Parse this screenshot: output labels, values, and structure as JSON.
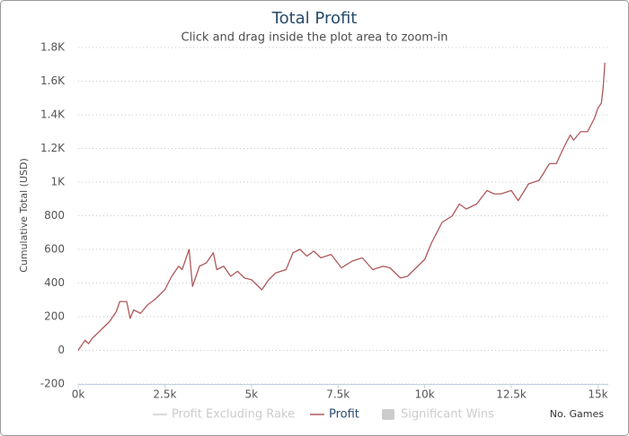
{
  "chart_data": {
    "type": "line",
    "title": "Total Profit",
    "subtitle": "Click and drag inside the plot area to zoom-in",
    "x_label": "No. Games",
    "y_label": "Cumulative Total (USD)",
    "xlim": [
      0,
      15300
    ],
    "xticks": [
      {
        "value": 0,
        "label": "0k"
      },
      {
        "value": 2500,
        "label": "2.5k"
      },
      {
        "value": 5000,
        "label": "5k"
      },
      {
        "value": 7500,
        "label": "7.5k"
      },
      {
        "value": 10000,
        "label": "10k"
      },
      {
        "value": 12500,
        "label": "12.5k"
      },
      {
        "value": 15000,
        "label": "15k"
      }
    ],
    "ylim": [
      -200,
      1800
    ],
    "yticks": [
      -200,
      0,
      200,
      400,
      600,
      800,
      {
        "value": 1000,
        "label": "1K"
      },
      {
        "value": 1200,
        "label": "1.2K"
      },
      {
        "value": 1400,
        "label": "1.4K"
      },
      {
        "value": 1600,
        "label": "1.6K"
      },
      {
        "value": 1800,
        "label": "1.8K"
      }
    ],
    "grid": true,
    "legend_items": [
      {
        "name": "Profit Excluding Rake",
        "color": "#cccccc",
        "symbol": "line",
        "hidden": true
      },
      {
        "name": "Profit",
        "color": "#b0585a",
        "symbol": "line",
        "hidden": false
      },
      {
        "name": "Significant Wins",
        "color": "#cccccc",
        "symbol": "box",
        "hidden": true
      }
    ],
    "series": [
      {
        "name": "Profit",
        "color": "#b0585a",
        "x": [
          0,
          200,
          300,
          400,
          600,
          900,
          1100,
          1200,
          1400,
          1500,
          1600,
          1800,
          2000,
          2200,
          2500,
          2700,
          2900,
          3000,
          3200,
          3300,
          3500,
          3700,
          3900,
          4000,
          4200,
          4400,
          4600,
          4800,
          5000,
          5300,
          5500,
          5700,
          6000,
          6200,
          6400,
          6600,
          6800,
          7000,
          7300,
          7600,
          7900,
          8200,
          8500,
          8800,
          9000,
          9300,
          9500,
          9800,
          10000,
          10200,
          10500,
          10800,
          11000,
          11200,
          11500,
          11800,
          12000,
          12200,
          12500,
          12700,
          13000,
          13300,
          13600,
          13800,
          14000,
          14200,
          14300,
          14500,
          14700,
          14900,
          15000,
          15100,
          15150,
          15200
        ],
        "values": [
          0,
          60,
          40,
          70,
          110,
          170,
          230,
          290,
          290,
          190,
          240,
          220,
          270,
          300,
          360,
          440,
          500,
          480,
          600,
          380,
          500,
          520,
          580,
          480,
          500,
          440,
          470,
          430,
          420,
          360,
          420,
          460,
          480,
          580,
          600,
          560,
          590,
          550,
          570,
          490,
          530,
          550,
          480,
          500,
          490,
          430,
          440,
          500,
          540,
          640,
          760,
          800,
          870,
          840,
          870,
          950,
          930,
          930,
          950,
          890,
          990,
          1010,
          1110,
          1110,
          1200,
          1280,
          1250,
          1300,
          1300,
          1380,
          1440,
          1470,
          1560,
          1710
        ]
      }
    ]
  }
}
